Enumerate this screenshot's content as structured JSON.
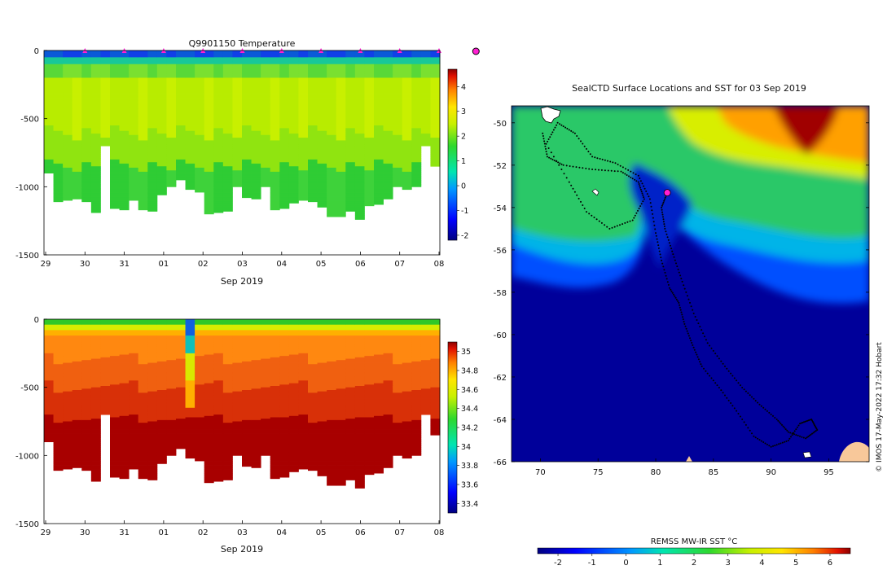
{
  "chart_data": [
    {
      "type": "heatmap",
      "title": "Q9901150  Temperature",
      "xlabel": "Sep 2019",
      "ylabel": "",
      "ylim": [
        -1500,
        0
      ],
      "yticks": [
        "0",
        "-500",
        "-1000",
        "-1500"
      ],
      "xticks": [
        "29",
        "30",
        "31",
        "01",
        "02",
        "03",
        "04",
        "05",
        "06",
        "07",
        "08"
      ],
      "colorbar": {
        "ticks": [
          "4",
          "3",
          "2",
          "1",
          "0",
          "-1",
          "-2"
        ],
        "range": [
          -2.2,
          4.7
        ]
      },
      "marker_days": [
        30,
        31,
        32,
        33,
        34,
        35,
        36,
        37,
        38,
        39
      ],
      "profile_max_depth": [
        900,
        1110,
        1100,
        1090,
        1110,
        1190,
        700,
        1160,
        1170,
        1100,
        1170,
        1180,
        1060,
        1000,
        950,
        1020,
        1040,
        1200,
        1190,
        1180,
        1000,
        1080,
        1090,
        1000,
        1170,
        1160,
        1120,
        1100,
        1110,
        1150,
        1220,
        1220,
        1180,
        1240,
        1140,
        1130,
        1090,
        1000,
        1020,
        1000,
        700,
        850
      ]
    },
    {
      "type": "heatmap",
      "title": "",
      "xlabel": "Sep 2019",
      "ylabel": "",
      "ylim": [
        -1500,
        0
      ],
      "yticks": [
        "0",
        "-500",
        "-1000",
        "-1500"
      ],
      "xticks": [
        "29",
        "30",
        "31",
        "01",
        "02",
        "03",
        "04",
        "05",
        "06",
        "07",
        "08"
      ],
      "colorbar": {
        "ticks": [
          "35",
          "34.8",
          "34.6",
          "34.4",
          "34.2",
          "34",
          "33.8",
          "33.6",
          "33.4"
        ],
        "range": [
          33.3,
          35.1
        ]
      }
    },
    {
      "type": "heatmap",
      "title": "SealCTD Surface Locations and SST for 03 Sep 2019",
      "xlabel": "",
      "ylabel": "",
      "xlim": [
        67.5,
        98.5
      ],
      "ylim": [
        -66,
        -49.2
      ],
      "xticks": [
        "70",
        "75",
        "80",
        "85",
        "90",
        "95"
      ],
      "yticks": [
        "-50",
        "-52",
        "-54",
        "-56",
        "-58",
        "-60",
        "-62",
        "-64",
        "-66"
      ],
      "colorbar": {
        "label": "REMSS MW-IR SST °C",
        "ticks": [
          "-2",
          "-1",
          "0",
          "1",
          "2",
          "3",
          "4",
          "5",
          "6"
        ],
        "range": [
          -2.6,
          6.6
        ]
      },
      "track": [
        [
          70.2,
          -50.5
        ],
        [
          70.6,
          -51.6
        ],
        [
          72.0,
          -52.0
        ],
        [
          74.5,
          -52.2
        ],
        [
          77.0,
          -52.3
        ],
        [
          78.5,
          -52.8
        ],
        [
          79.0,
          -53.6
        ],
        [
          78.0,
          -54.6
        ],
        [
          76.0,
          -55.0
        ],
        [
          74.0,
          -54.2
        ],
        [
          72.5,
          -52.8
        ],
        [
          70.5,
          -51.0
        ],
        [
          71.5,
          -50.0
        ],
        [
          73.0,
          -50.5
        ],
        [
          74.5,
          -51.6
        ],
        [
          76.5,
          -51.9
        ],
        [
          78.5,
          -52.5
        ],
        [
          79.5,
          -53.6
        ],
        [
          80.0,
          -55.2
        ],
        [
          80.5,
          -56.5
        ],
        [
          81.2,
          -57.8
        ],
        [
          82.0,
          -58.5
        ],
        [
          82.5,
          -59.5
        ],
        [
          83.2,
          -60.5
        ],
        [
          84.0,
          -61.5
        ],
        [
          85.5,
          -62.5
        ],
        [
          87.0,
          -63.6
        ],
        [
          88.5,
          -64.8
        ],
        [
          90.0,
          -65.3
        ],
        [
          91.5,
          -65.0
        ],
        [
          92.5,
          -64.2
        ],
        [
          93.5,
          -64.0
        ],
        [
          94.0,
          -64.5
        ],
        [
          93.0,
          -64.9
        ],
        [
          91.5,
          -64.6
        ],
        [
          90.5,
          -64.0
        ],
        [
          89.0,
          -63.3
        ],
        [
          87.5,
          -62.5
        ],
        [
          86.0,
          -61.5
        ],
        [
          84.5,
          -60.4
        ],
        [
          83.3,
          -59.0
        ],
        [
          82.3,
          -57.5
        ],
        [
          81.5,
          -56.2
        ],
        [
          80.8,
          -55.0
        ],
        [
          80.5,
          -54.0
        ],
        [
          81.0,
          -53.3
        ]
      ],
      "current_position": [
        81.0,
        -53.3
      ]
    }
  ],
  "footer": {
    "credit": "© IMOS 17-May-2022 17:32 Hobart"
  },
  "colors": {
    "marker": "#ff1fd2",
    "background": "#ffffff"
  }
}
